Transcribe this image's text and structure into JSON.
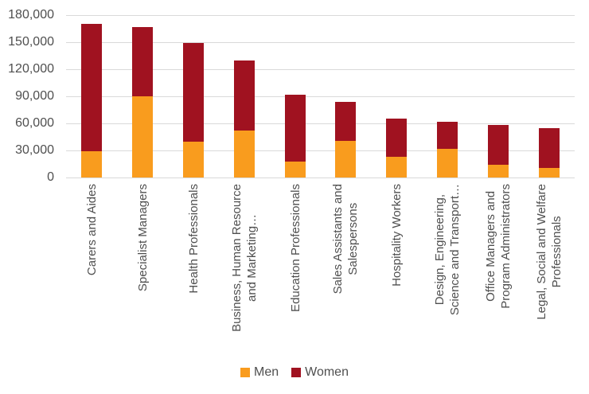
{
  "chart_data": {
    "type": "bar",
    "subtype": "stacked-column",
    "title": "",
    "xlabel": "",
    "ylabel": "",
    "grid": true,
    "legend_position": "bottom",
    "background": "#ffffff",
    "gridline_color": "#d9d9d9",
    "text_color": "#4f4f4f",
    "categories": [
      "Carers and Aides",
      "Specialist Managers",
      "Health Professionals",
      "Business, Human Resource\nand Marketing…",
      "Education Professionals",
      "Sales Assistants and\nSalespersons",
      "Hospitality Workers",
      "Design, Engineering,\nScience and Transport…",
      "Office Managers and\nProgram Administrators",
      "Legal, Social and Welfare\nProfessionals"
    ],
    "series": [
      {
        "name": "Men",
        "color": "#F99C1E",
        "values": [
          29000,
          90000,
          40000,
          52000,
          18000,
          41000,
          23000,
          32000,
          14000,
          11000
        ]
      },
      {
        "name": "Women",
        "color": "#A01220",
        "values": [
          141000,
          77000,
          109000,
          78000,
          74000,
          43000,
          42000,
          30000,
          44000,
          44000
        ]
      }
    ],
    "stacked_totals": [
      170000,
      167000,
      149000,
      130000,
      92000,
      84000,
      65000,
      62000,
      58000,
      55000
    ],
    "y_axis": {
      "min": 0,
      "max": 180000,
      "tick_interval": 30000,
      "tick_labels": [
        "0",
        "30,000",
        "60,000",
        "90,000",
        "120,000",
        "150,000",
        "180,000"
      ]
    }
  }
}
